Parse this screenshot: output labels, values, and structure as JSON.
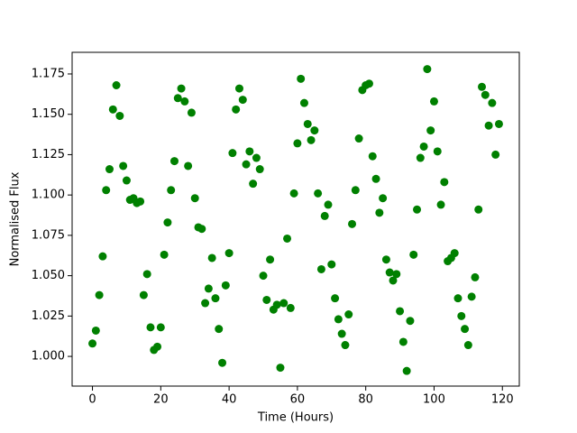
{
  "chart_data": {
    "type": "scatter",
    "x_label": "Time (Hours)",
    "y_label": "Normalised Flux",
    "color": "#008000",
    "x": [
      0,
      1,
      2,
      3,
      4,
      5,
      6,
      7,
      8,
      9,
      10,
      11,
      12,
      13,
      14,
      15,
      16,
      17,
      18,
      19,
      20,
      21,
      22,
      23,
      24,
      25,
      26,
      27,
      28,
      29,
      30,
      31,
      32,
      33,
      34,
      35,
      36,
      37,
      38,
      39,
      40,
      41,
      42,
      43,
      44,
      45,
      46,
      47,
      48,
      49,
      50,
      51,
      52,
      53,
      54,
      55,
      56,
      57,
      58,
      59,
      60,
      61,
      62,
      63,
      64,
      65,
      66,
      67,
      68,
      69,
      70,
      71,
      72,
      73,
      74,
      75,
      76,
      77,
      78,
      79,
      80,
      81,
      82,
      83,
      84,
      85,
      86,
      87,
      88,
      89,
      90,
      91,
      92,
      93,
      94,
      95,
      96,
      97,
      98,
      99,
      100,
      101,
      102,
      103,
      104,
      105,
      106,
      107,
      108,
      109,
      110,
      111,
      112,
      113,
      114,
      115,
      116,
      117,
      118,
      119
    ],
    "values": [
      1.008,
      1.016,
      1.038,
      1.062,
      1.103,
      1.116,
      1.153,
      1.168,
      1.149,
      1.118,
      1.109,
      1.097,
      1.098,
      1.095,
      1.096,
      1.038,
      1.051,
      1.018,
      1.004,
      1.006,
      1.018,
      1.063,
      1.083,
      1.103,
      1.121,
      1.16,
      1.166,
      1.158,
      1.118,
      1.151,
      1.098,
      1.08,
      1.079,
      1.033,
      1.042,
      1.061,
      1.036,
      1.017,
      0.996,
      1.044,
      1.064,
      1.126,
      1.153,
      1.166,
      1.159,
      1.119,
      1.127,
      1.107,
      1.123,
      1.116,
      1.05,
      1.035,
      1.06,
      1.029,
      1.032,
      0.993,
      1.033,
      1.073,
      1.03,
      1.101,
      1.132,
      1.172,
      1.157,
      1.144,
      1.134,
      1.14,
      1.101,
      1.054,
      1.087,
      1.094,
      1.057,
      1.036,
      1.023,
      1.014,
      1.007,
      1.026,
      1.082,
      1.103,
      1.135,
      1.165,
      1.168,
      1.169,
      1.124,
      1.11,
      1.089,
      1.098,
      1.06,
      1.052,
      1.047,
      1.051,
      1.028,
      1.009,
      0.991,
      1.022,
      1.063,
      1.091,
      1.123,
      1.13,
      1.178,
      1.14,
      1.158,
      1.127,
      1.094,
      1.108,
      1.059,
      1.061,
      1.064,
      1.036,
      1.025,
      1.017,
      1.007,
      1.037,
      1.049,
      1.091,
      1.167,
      1.162,
      1.143,
      1.157,
      1.125,
      1.144
    ],
    "xlim": [
      -5.95,
      124.95
    ],
    "xticks": [
      0,
      20,
      40,
      60,
      80,
      100,
      120
    ],
    "ylim": [
      0.9816,
      1.1884
    ],
    "yticks": [
      {
        "value": 1.0,
        "label": "1.000"
      },
      {
        "value": 1.025,
        "label": "1.025"
      },
      {
        "value": 1.05,
        "label": "1.050"
      },
      {
        "value": 1.075,
        "label": "1.075"
      },
      {
        "value": 1.1,
        "label": "1.100"
      },
      {
        "value": 1.125,
        "label": "1.125"
      },
      {
        "value": 1.15,
        "label": "1.150"
      },
      {
        "value": 1.175,
        "label": "1.175"
      }
    ],
    "grid": false
  }
}
